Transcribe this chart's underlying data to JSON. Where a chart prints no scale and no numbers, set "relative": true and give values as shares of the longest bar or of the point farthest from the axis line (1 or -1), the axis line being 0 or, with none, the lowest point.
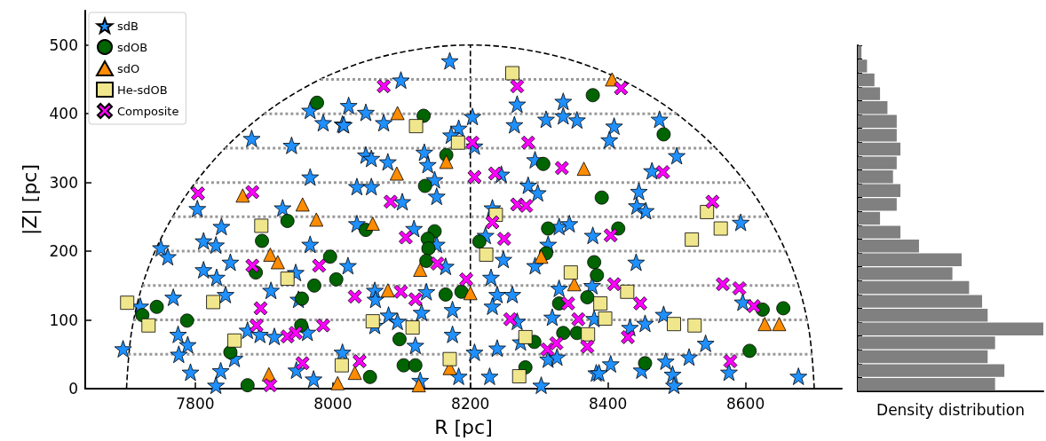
{
  "chart_data": [
    {
      "type": "scatter",
      "xlabel": "R [pc]",
      "ylabel": "|Z| [pc]",
      "xlim": [
        7640,
        8740
      ],
      "ylim": [
        0,
        550
      ],
      "xticks": [
        7800,
        8000,
        8200,
        8400,
        8600
      ],
      "yticks": [
        0,
        100,
        200,
        300,
        400,
        500
      ],
      "grid": false,
      "legend": "top left",
      "series": [
        {
          "name": "sdB",
          "type": "scatter",
          "marker": "star",
          "color": "#1e90ff",
          "x": [
            7967,
            7986,
            8014,
            7882,
            7940,
            7967,
            7803,
            7927,
            8170,
            8099,
            8023,
            8048,
            8016,
            8074,
            8203,
            8183,
            8172,
            8206,
            8048,
            8056,
            8080,
            8133,
            8138,
            8148,
            8035,
            8056,
            8101,
            8151,
            8268,
            8264,
            8335,
            8335,
            8310,
            8355,
            8245,
            8284,
            8298,
            8232,
            8294,
            8475,
            8409,
            8402,
            8500,
            8464,
            8445,
            8442,
            8455,
            7838,
            7750,
            7760,
            7812,
            7830,
            7851,
            7812,
            7831,
            7768,
            7844,
            7825,
            7720,
            7775,
            7789,
            7776,
            7695,
            7793,
            7837,
            7830,
            7857,
            7910,
            7946,
            7967,
            7876,
            7894,
            7915,
            7963,
            7947,
            7972,
            8014,
            7950,
            8035,
            8118,
            8151,
            8164,
            8022,
            8061,
            8062,
            8136,
            8174,
            8129,
            8081,
            8094,
            8061,
            8120,
            8174,
            8127,
            8183,
            8206,
            8239,
            8228,
            8303,
            8313,
            8326,
            8273,
            8268,
            8319,
            8230,
            8239,
            8261,
            8232,
            8248,
            8222,
            8313,
            8329,
            8344,
            8378,
            8294,
            8329,
            8377,
            8380,
            8383,
            8441,
            8432,
            8454,
            8481,
            8542,
            8518,
            8484,
            8449,
            8494,
            8496,
            8404,
            8387,
            8596,
            8576,
            8677,
            8593
          ],
          "values": [
            405,
            387,
            385,
            364,
            354,
            308,
            262,
            263,
            477,
            449,
            412,
            402,
            384,
            387,
            396,
            379,
            369,
            353,
            340,
            335,
            330,
            344,
            326,
            304,
            294,
            294,
            272,
            280,
            414,
            384,
            418,
            397,
            392,
            391,
            312,
            296,
            285,
            263,
            333,
            392,
            382,
            362,
            339,
            317,
            287,
            266,
            259,
            236,
            205,
            192,
            215,
            209,
            184,
            173,
            162,
            133,
            137,
            null,
            120,
            79,
            64,
            50,
            58,
            24,
            26,
            5,
            44,
            143,
            169,
            210,
            85,
            79,
            76,
            82,
            27,
            14,
            53,
            130,
            240,
            233,
            210,
            178,
            179,
            143,
            130,
            141,
            115,
            111,
            107,
            98,
            92,
            63,
            79,
            12,
            18,
            53,
            59,
            18,
            5,
            43,
            46,
            68,
            98,
            104,
            162,
            137,
            137,
            120,
            188,
            223,
            210,
            236,
            240,
            223,
            179,
            146,
            150,
            102,
            23,
            184,
            89,
            95,
            108,
            66,
            46,
            40,
            27,
            21,
            5,
            36,
            23,
            126,
            24,
            18,
            242
          ]
        },
        {
          "name": "sdOB",
          "type": "scatter",
          "marker": "circle",
          "color": "#006400",
          "x": [
            7977,
            8132,
            8165,
            8306,
            8134,
            8378,
            8481,
            8391,
            7934,
            7897,
            7888,
            7996,
            8005,
            7973,
            7955,
            7744,
            7723,
            7788,
            7851,
            7954,
            7876,
            8048,
            8148,
            8138,
            8139,
            8136,
            8164,
            8187,
            8213,
            8313,
            8310,
            8380,
            8384,
            8370,
            8329,
            8097,
            8103,
            8120,
            8054,
            8335,
            8355,
            8293,
            8280,
            8415,
            8625,
            8655,
            8606,
            8454
          ],
          "values": [
            416,
            397,
            340,
            327,
            295,
            427,
            370,
            278,
            244,
            215,
            169,
            192,
            159,
            150,
            131,
            119,
            107,
            99,
            53,
            92,
            5,
            231,
            229,
            218,
            204,
            186,
            137,
            141,
            214,
            233,
            197,
            184,
            165,
            133,
            124,
            72,
            34,
            34,
            17,
            81,
            81,
            68,
            31,
            233,
            115,
            117,
            55,
            37
          ]
        },
        {
          "name": "sdO",
          "type": "scatter",
          "marker": "triangle",
          "color": "#ff8c00",
          "x": [
            7869,
            7956,
            8094,
            8093,
            8165,
            8365,
            8406,
            7976,
            7909,
            7920,
            7907,
            8058,
            8127,
            8080,
            8200,
            8303,
            8351,
            8032,
            8170,
            8007,
            8125,
            8628,
            8649
          ],
          "values": [
            281,
            268,
            401,
            313,
            330,
            320,
            450,
            246,
            195,
            184,
            21,
            240,
            173,
            143,
            139,
            192,
            152,
            23,
            30,
            8,
            5,
            94,
            94
          ]
        },
        {
          "name": "He-sdOB",
          "type": "scatter",
          "marker": "square",
          "color": "#f0e68c",
          "x": [
            8121,
            8182,
            8261,
            8237,
            8223,
            7896,
            7934,
            7701,
            7826,
            7732,
            7857,
            8013,
            8058,
            8116,
            8346,
            8389,
            8396,
            8371,
            8280,
            8170,
            8271,
            8544,
            8564,
            8522,
            8428,
            8496,
            8526
          ],
          "values": [
            382,
            358,
            459,
            253,
            195,
            237,
            160,
            125,
            126,
            92,
            70,
            34,
            98,
            89,
            169,
            124,
            102,
            79,
            75,
            43,
            18,
            257,
            233,
            217,
            141,
            94,
            92
          ]
        },
        {
          "name": "Composite",
          "type": "scatter",
          "marker": "cross",
          "color": "#ff00ff",
          "x": [
            8074,
            8268,
            8419,
            7804,
            7883,
            8203,
            8284,
            8206,
            8236,
            8333,
            8084,
            8268,
            8281,
            8480,
            7883,
            7895,
            7889,
            7934,
            7946,
            7980,
            7986,
            7956,
            7909,
            8106,
            8152,
            8032,
            8099,
            8120,
            8039,
            8194,
            8232,
            8249,
            8258,
            8342,
            8357,
            8312,
            8325,
            8370,
            8404,
            8409,
            8447,
            8429,
            8567,
            8591,
            8612,
            8578,
            8552
          ],
          "values": [
            440,
            440,
            437,
            284,
            286,
            358,
            358,
            308,
            313,
            321,
            272,
            268,
            266,
            315,
            179,
            117,
            92,
            76,
            81,
            179,
            92,
            37,
            5,
            220,
            182,
            134,
            141,
            130,
            40,
            159,
            242,
            218,
            101,
            124,
            101,
            57,
            66,
            61,
            223,
            152,
            124,
            75,
            152,
            146,
            120,
            40,
            272
          ]
        },
        {
          "type": "line",
          "marker": "none",
          "line_style": "dashed",
          "color": "#000000",
          "x": [
            8700,
            8692,
            8670,
            8633,
            8583,
            8521,
            8450,
            8371,
            8287,
            8200,
            8113,
            8029,
            7950,
            7879,
            7817,
            7767,
            7730,
            7708,
            7700
          ],
          "values": [
            0,
            87,
            171,
            250,
            321,
            383,
            433,
            470,
            492,
            500,
            492,
            470,
            433,
            383,
            321,
            250,
            171,
            87,
            0
          ]
        },
        {
          "type": "line",
          "marker": "none",
          "line_style": "dashed",
          "color": "#000000",
          "x": [
            8200,
            8200
          ],
          "values": [
            0,
            500
          ]
        },
        {
          "type": "line",
          "marker": "none",
          "line_style": "dotted",
          "color": "#999999",
          "x": [
            7702.5,
            8697.5
          ],
          "values": [
            50,
            50
          ]
        },
        {
          "type": "line",
          "marker": "none",
          "line_style": "dotted",
          "color": "#999999",
          "x": [
            7710.1,
            8689.9
          ],
          "values": [
            100,
            100
          ]
        },
        {
          "type": "line",
          "marker": "none",
          "line_style": "dotted",
          "color": "#999999",
          "x": [
            7723,
            8677
          ],
          "values": [
            150,
            150
          ]
        },
        {
          "type": "line",
          "marker": "none",
          "line_style": "dotted",
          "color": "#999999",
          "x": [
            7741.7,
            8658.3
          ],
          "values": [
            200,
            200
          ]
        },
        {
          "type": "line",
          "marker": "none",
          "line_style": "dotted",
          "color": "#999999",
          "x": [
            7767,
            8633
          ],
          "values": [
            250,
            250
          ]
        },
        {
          "type": "line",
          "marker": "none",
          "line_style": "dotted",
          "color": "#999999",
          "x": [
            7800,
            8600
          ],
          "values": [
            300,
            300
          ]
        },
        {
          "type": "line",
          "marker": "none",
          "line_style": "dotted",
          "color": "#999999",
          "x": [
            7842.9,
            8557.1
          ],
          "values": [
            350,
            350
          ]
        },
        {
          "type": "line",
          "marker": "none",
          "line_style": "dotted",
          "color": "#999999",
          "x": [
            7900,
            8500
          ],
          "values": [
            400,
            400
          ]
        },
        {
          "type": "line",
          "marker": "none",
          "line_style": "dotted",
          "color": "#999999",
          "x": [
            7982.1,
            8417.9
          ],
          "values": [
            450,
            450
          ]
        }
      ]
    },
    {
      "type": "bar",
      "orientation": "horizontal",
      "relative": true,
      "xlabel": "Density distribution",
      "color": "#808080",
      "categories": [
        null,
        null,
        null,
        null,
        null,
        null,
        null,
        null,
        null,
        null,
        null,
        null,
        null,
        null,
        null,
        null,
        null,
        null,
        null,
        null,
        null,
        null,
        null,
        null,
        null
      ],
      "values": [
        0.02,
        0.05,
        0.09,
        0.12,
        0.16,
        0.21,
        0.21,
        0.23,
        0.21,
        0.19,
        0.23,
        0.21,
        0.12,
        0.23,
        0.33,
        0.56,
        0.51,
        0.6,
        0.67,
        0.7,
        1,
        0.74,
        0.7,
        0.79,
        0.74
      ]
    }
  ]
}
